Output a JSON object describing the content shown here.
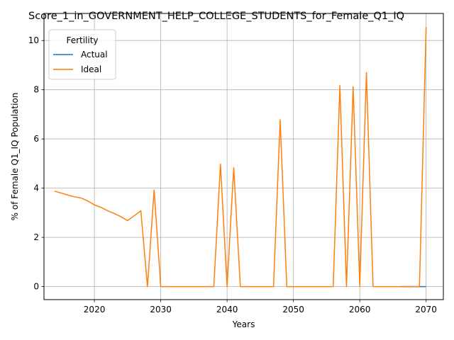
{
  "chart_data": {
    "type": "line",
    "title": "Score_1_in_GOVERNMENT_HELP_COLLEGE_STUDENTS_for_Female_Q1_IQ",
    "xlabel": "Years",
    "ylabel": "% of Female Q1_IQ Population",
    "xlim": [
      2012.4,
      2072.6
    ],
    "ylim": [
      -0.53,
      11.1
    ],
    "xticks": [
      2020,
      2030,
      2040,
      2050,
      2060,
      2070
    ],
    "yticks": [
      0,
      2,
      4,
      6,
      8,
      10
    ],
    "grid": true,
    "legend": {
      "title": "Fertility",
      "placement": "top-left"
    },
    "x": [
      2014,
      2015,
      2016,
      2017,
      2018,
      2019,
      2020,
      2021,
      2022,
      2023,
      2024,
      2025,
      2026,
      2027,
      2028,
      2029,
      2030,
      2031,
      2032,
      2033,
      2034,
      2035,
      2036,
      2037,
      2038,
      2039,
      2040,
      2041,
      2042,
      2043,
      2044,
      2045,
      2046,
      2047,
      2048,
      2049,
      2050,
      2051,
      2052,
      2053,
      2054,
      2055,
      2056,
      2057,
      2058,
      2059,
      2060,
      2061,
      2062,
      2063,
      2064,
      2065,
      2066,
      2067,
      2068,
      2069,
      2070
    ],
    "series": [
      {
        "name": "Actual",
        "color": "#1f77b4",
        "values": [
          null,
          null,
          null,
          null,
          null,
          null,
          null,
          null,
          null,
          null,
          null,
          null,
          null,
          null,
          null,
          null,
          null,
          null,
          null,
          null,
          null,
          null,
          null,
          null,
          null,
          null,
          null,
          null,
          null,
          null,
          null,
          null,
          null,
          null,
          null,
          null,
          null,
          null,
          null,
          null,
          null,
          null,
          null,
          null,
          null,
          null,
          null,
          null,
          null,
          null,
          null,
          null,
          0,
          0,
          0,
          0,
          0
        ]
      },
      {
        "name": "Ideal",
        "color": "#ff7f0e",
        "values": [
          3.88,
          3.8,
          3.72,
          3.65,
          3.6,
          3.48,
          3.32,
          3.22,
          3.08,
          2.97,
          2.84,
          2.68,
          2.88,
          3.08,
          0,
          3.93,
          0,
          0,
          0,
          0,
          0,
          0,
          0,
          0,
          0,
          4.98,
          0,
          4.83,
          0,
          0,
          0,
          0,
          0,
          0,
          6.78,
          0,
          0,
          0,
          0,
          0,
          0,
          0,
          0,
          8.17,
          0,
          8.12,
          0,
          8.7,
          0,
          0,
          0,
          0,
          0,
          0,
          0,
          0,
          10.55
        ]
      }
    ]
  }
}
